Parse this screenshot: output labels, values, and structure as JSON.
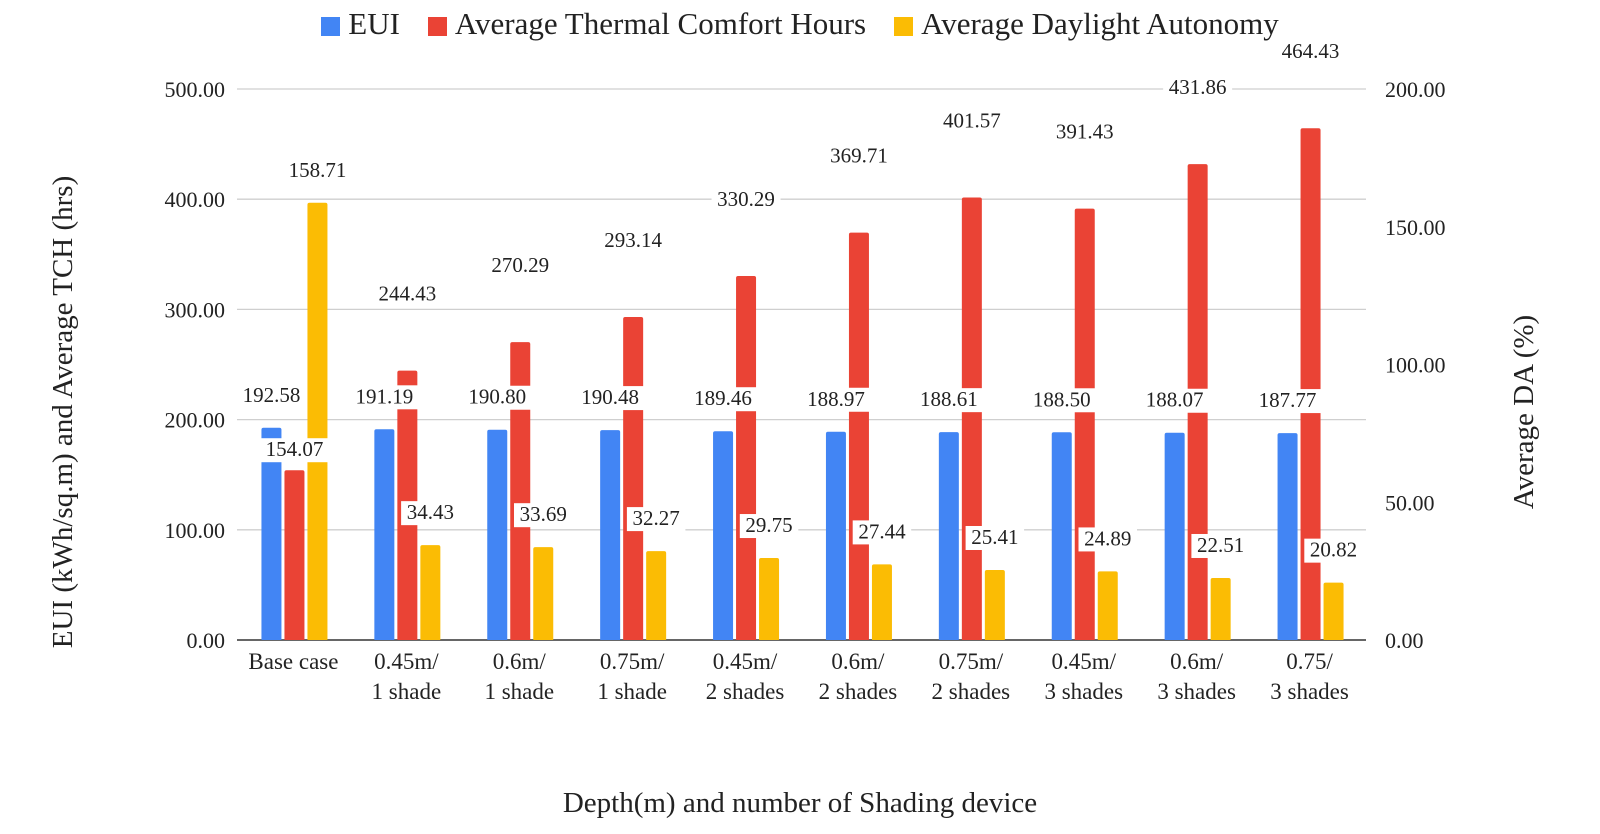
{
  "chart_data": {
    "type": "bar",
    "categories": [
      [
        "Base case"
      ],
      [
        "0.45m/",
        "1 shade"
      ],
      [
        "0.6m/",
        "1 shade"
      ],
      [
        "0.75m/",
        "1 shade"
      ],
      [
        "0.45m/",
        "2 shades"
      ],
      [
        "0.6m/",
        "2 shades"
      ],
      [
        "0.75m/",
        "2 shades"
      ],
      [
        "0.45m/",
        "3 shades"
      ],
      [
        "0.6m/",
        "3 shades"
      ],
      [
        "0.75/",
        "3 shades"
      ]
    ],
    "series": [
      {
        "name": "EUI",
        "color": "#4285F4",
        "axis": "left",
        "values": [
          192.58,
          191.19,
          190.8,
          190.48,
          189.46,
          188.97,
          188.61,
          188.5,
          188.07,
          187.77
        ],
        "labels": [
          "192.58",
          "191.19",
          "190.80",
          "190.48",
          "189.46",
          "188.97",
          "188.61",
          "188.50",
          "188.07",
          "187.77"
        ]
      },
      {
        "name": "Average Thermal Comfort Hours",
        "color": "#EA4335",
        "axis": "left",
        "values": [
          154.07,
          244.43,
          270.29,
          293.14,
          330.29,
          369.71,
          401.57,
          391.43,
          431.86,
          464.43
        ],
        "labels": [
          "154.07",
          "244.43",
          "270.29",
          "293.14",
          "330.29",
          "369.71",
          "401.57",
          "391.43",
          "431.86",
          "464.43"
        ]
      },
      {
        "name": "Average Daylight Autonomy",
        "color": "#FBBC04",
        "axis": "right",
        "values": [
          158.71,
          34.43,
          33.69,
          32.27,
          29.75,
          27.44,
          25.41,
          24.89,
          22.51,
          20.82
        ],
        "labels": [
          "158.71",
          "34.43",
          "33.69",
          "32.27",
          "29.75",
          "27.44",
          "25.41",
          "24.89",
          "22.51",
          "20.82"
        ]
      }
    ],
    "xlabel": "Depth(m) and number of Shading device",
    "ylabel": "EUI (kWh/sq.m) and Average TCH (hrs)",
    "ylabel_right": "Average DA (%)",
    "ylim": [
      0,
      500
    ],
    "ylim_right": [
      0,
      200
    ],
    "yticks": [
      "0.00",
      "100.00",
      "200.00",
      "300.00",
      "400.00",
      "500.00"
    ],
    "yticks_right": [
      "0.00",
      "50.00",
      "100.00",
      "150.00",
      "200.00"
    ],
    "grid": true,
    "legend_position": "top"
  }
}
